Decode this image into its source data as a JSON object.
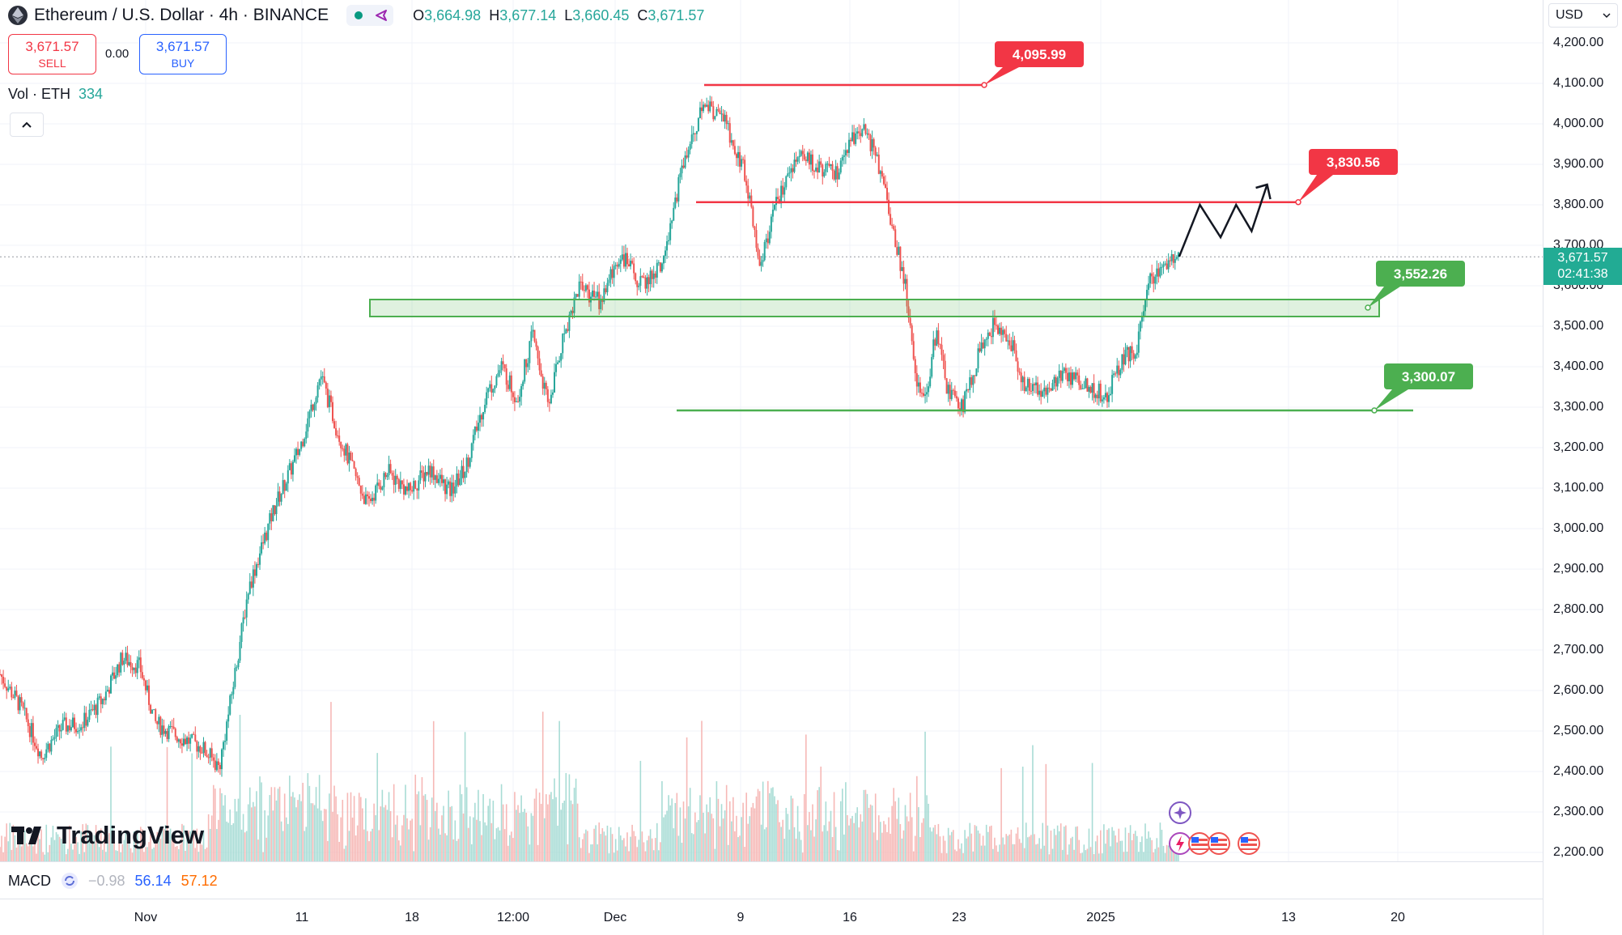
{
  "header": {
    "title": "Ethereum / U.S. Dollar · 4h · BINANCE",
    "ohlc": {
      "o_label": "O",
      "o_value": "3,664.98",
      "h_label": "H",
      "h_value": "3,677.14",
      "l_label": "L",
      "l_value": "3,660.45",
      "c_label": "C",
      "c_value": "3,671.57"
    },
    "pill_icons": [
      "status-dot-icon",
      "broadcast-icon"
    ]
  },
  "trade": {
    "sell_price": "3,671.57",
    "sell_label": "SELL",
    "spread": "0.00",
    "buy_price": "3,671.57",
    "buy_label": "BUY"
  },
  "volume_legend": {
    "label": "Vol · ETH",
    "value": "334"
  },
  "logo_text": "TradingView",
  "macd": {
    "label": "MACD",
    "v1": "−0.98",
    "v2": "56.14",
    "v3": "57.12"
  },
  "price_axis": {
    "currency": "USD",
    "ticks": [
      "4,200.00",
      "4,100.00",
      "4,000.00",
      "3,900.00",
      "3,800.00",
      "3,700.00",
      "3,600.00",
      "3,500.00",
      "3,400.00",
      "3,300.00",
      "3,200.00",
      "3,100.00",
      "3,000.00",
      "2,900.00",
      "2,800.00",
      "2,700.00",
      "2,600.00",
      "2,500.00",
      "2,400.00",
      "2,300.00",
      "2,200.00"
    ],
    "current_price": "3,671.57",
    "countdown": "02:41:38"
  },
  "time_axis": {
    "ticks": [
      "Nov",
      "11",
      "18",
      "12:00",
      "Dec",
      "9",
      "16",
      "23",
      "2025",
      "13",
      "20"
    ]
  },
  "colors": {
    "up": "#26a69a",
    "down": "#ef5350",
    "resistance": "#f23645",
    "support": "#4caf50",
    "current": "#22ab94"
  },
  "chart_data": {
    "type": "candlestick",
    "symbol": "Ethereum / U.S. Dollar",
    "interval": "4h",
    "exchange": "BINANCE",
    "ylim": [
      2200,
      4200
    ],
    "x_ticks": [
      "Nov",
      "11",
      "18",
      "12:00",
      "Dec",
      "9",
      "16",
      "23",
      "2025",
      "13",
      "20"
    ],
    "price_path": [
      [
        0,
        2640
      ],
      [
        20,
        2560
      ],
      [
        40,
        2440
      ],
      [
        60,
        2510
      ],
      [
        80,
        2520
      ],
      [
        100,
        2580
      ],
      [
        118,
        2680
      ],
      [
        135,
        2660
      ],
      [
        150,
        2520
      ],
      [
        170,
        2490
      ],
      [
        195,
        2460
      ],
      [
        212,
        2410
      ],
      [
        222,
        2560
      ],
      [
        240,
        2850
      ],
      [
        265,
        3050
      ],
      [
        290,
        3200
      ],
      [
        310,
        3380
      ],
      [
        325,
        3250
      ],
      [
        340,
        3150
      ],
      [
        355,
        3060
      ],
      [
        375,
        3140
      ],
      [
        395,
        3090
      ],
      [
        415,
        3150
      ],
      [
        435,
        3090
      ],
      [
        450,
        3150
      ],
      [
        470,
        3330
      ],
      [
        485,
        3400
      ],
      [
        500,
        3320
      ],
      [
        515,
        3480
      ],
      [
        530,
        3300
      ],
      [
        545,
        3480
      ],
      [
        560,
        3600
      ],
      [
        580,
        3560
      ],
      [
        600,
        3680
      ],
      [
        620,
        3600
      ],
      [
        640,
        3650
      ],
      [
        660,
        3900
      ],
      [
        680,
        4050
      ],
      [
        700,
        4010
      ],
      [
        720,
        3880
      ],
      [
        735,
        3650
      ],
      [
        750,
        3800
      ],
      [
        770,
        3920
      ],
      [
        790,
        3900
      ],
      [
        810,
        3870
      ],
      [
        830,
        4000
      ],
      [
        845,
        3940
      ],
      [
        860,
        3780
      ],
      [
        875,
        3600
      ],
      [
        885,
        3380
      ],
      [
        895,
        3320
      ],
      [
        905,
        3490
      ],
      [
        915,
        3350
      ],
      [
        930,
        3300
      ],
      [
        945,
        3420
      ],
      [
        960,
        3500
      ],
      [
        975,
        3480
      ],
      [
        990,
        3350
      ],
      [
        1010,
        3340
      ],
      [
        1030,
        3380
      ],
      [
        1050,
        3350
      ],
      [
        1070,
        3330
      ],
      [
        1085,
        3420
      ],
      [
        1100,
        3450
      ],
      [
        1108,
        3600
      ],
      [
        1120,
        3640
      ],
      [
        1140,
        3672
      ]
    ],
    "volume_peak": 334,
    "annotations": [
      {
        "type": "resistance",
        "label": "4,095.99",
        "price": 4095.99
      },
      {
        "type": "resistance",
        "label": "3,830.56",
        "price": 3830.56
      },
      {
        "type": "support_zone",
        "label": "3,552.26",
        "price": 3552.26,
        "zone": [
          3530,
          3560
        ]
      },
      {
        "type": "support",
        "label": "3,300.07",
        "price": 3300.07
      },
      {
        "type": "projection_arrow",
        "points": [
          [
            1140,
            3672
          ],
          [
            1160,
            3800
          ],
          [
            1180,
            3720
          ],
          [
            1195,
            3800
          ],
          [
            1210,
            3735
          ],
          [
            1225,
            3850
          ]
        ]
      }
    ],
    "current_price": 3671.57
  }
}
